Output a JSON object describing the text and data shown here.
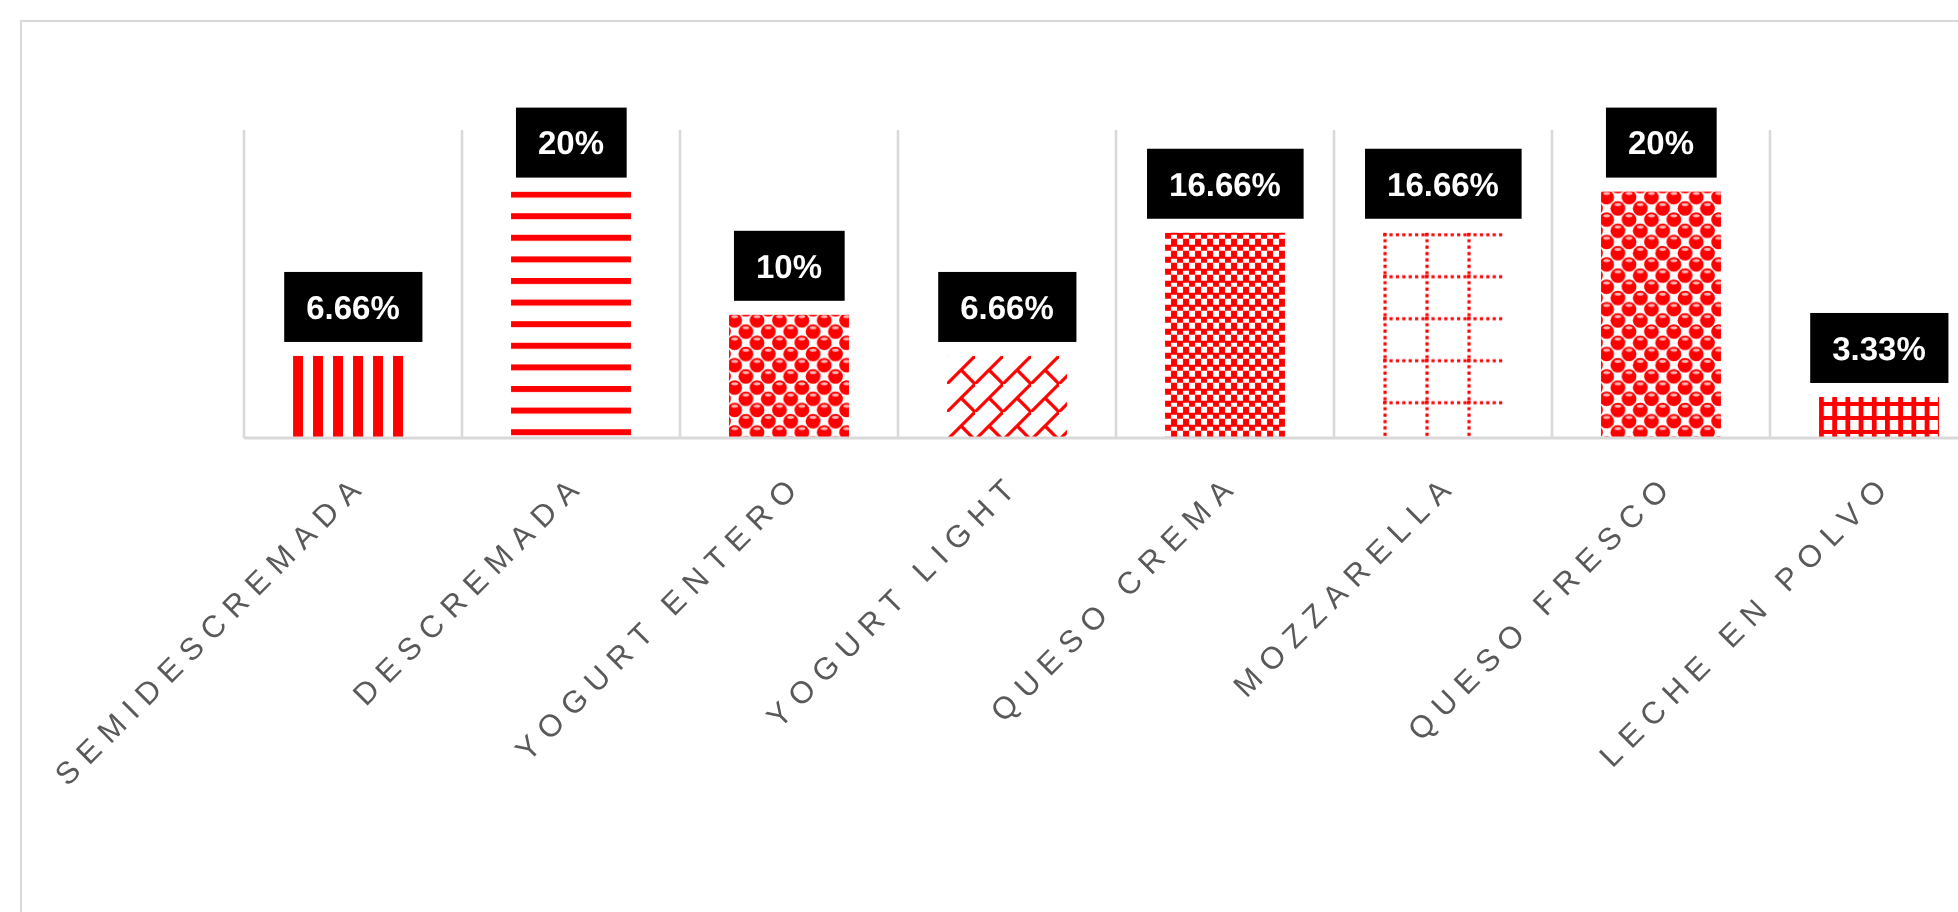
{
  "chart_data": {
    "type": "bar",
    "categories": [
      "SEMIDESCREMADA",
      "DESCREMADA",
      "YOGURT ENTERO",
      "YOGURT LIGHT",
      "QUESO CREMA",
      "MOZZARELLA",
      "QUESO FRESCO",
      "LECHE EN POLVO"
    ],
    "values": [
      6.66,
      20,
      10,
      6.66,
      16.66,
      16.66,
      20,
      3.33
    ],
    "colors": [
      "#ff0000",
      "#ff0000",
      "#ff0000",
      "#ff0000",
      "#ff0000",
      "#ff0000",
      "#ff0000",
      "#ff0000"
    ],
    "value_labels": [
      "6.66%",
      "20%",
      "10%",
      "6.66%",
      "16.66%",
      "16.66%",
      "20%",
      "3.33%"
    ],
    "ylim": [
      0,
      25
    ],
    "grid": "x",
    "tick_labels": "x"
  }
}
